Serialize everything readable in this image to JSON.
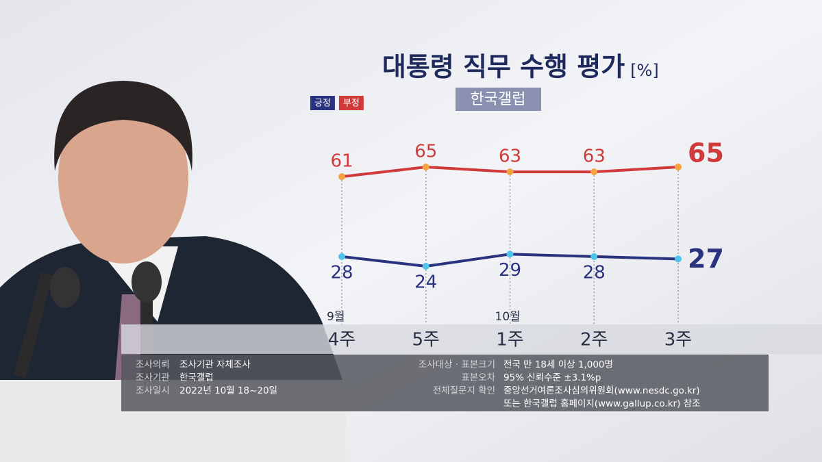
{
  "chart_data": {
    "type": "line",
    "title": "대통령 직무 수행 평가",
    "unit": "[%]",
    "subtitle": "한국갤럽",
    "categories": [
      "4주",
      "5주",
      "1주",
      "2주",
      "3주"
    ],
    "month_labels": [
      "9월",
      null,
      "10월",
      null,
      null
    ],
    "series": [
      {
        "name": "긍정",
        "color": "#2a3380",
        "dot_color": "#4fc3e8",
        "values": [
          28,
          24,
          29,
          28,
          27
        ]
      },
      {
        "name": "부정",
        "color": "#d13a3a",
        "dot_color": "#f5a340",
        "values": [
          61,
          65,
          63,
          63,
          65
        ]
      }
    ],
    "survey_info": {
      "left": [
        {
          "label": "조사의뢰",
          "lines": [
            "조사기관 자체조사"
          ]
        },
        {
          "label": "조사기관",
          "lines": [
            "한국갤럽"
          ]
        },
        {
          "label": "조사일시",
          "lines": [
            "2022년 10월 18~20일"
          ]
        }
      ],
      "right": [
        {
          "label": "조사대상 · 표본크기",
          "lines": [
            "전국 만 18세 이상 1,000명"
          ]
        },
        {
          "label": "표본오차",
          "lines": [
            "95% 신뢰수준 ±3.1%p"
          ]
        },
        {
          "label": "전체질문지 확인",
          "lines": [
            "중앙선거여론조사심의위원회(www.nesdc.go.kr)",
            "또는 한국갤럽 홈페이지(www.gallup.co.kr) 참조"
          ]
        }
      ]
    }
  }
}
